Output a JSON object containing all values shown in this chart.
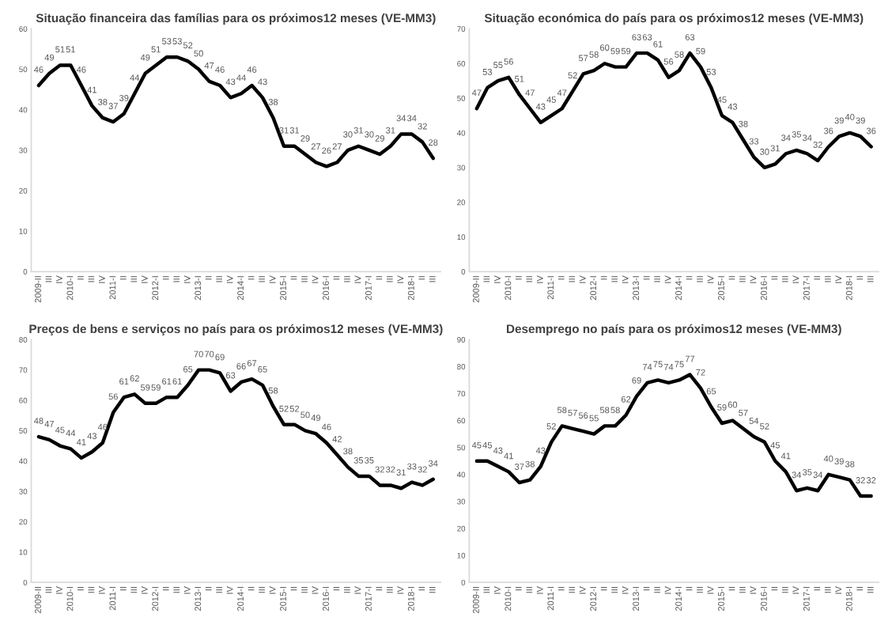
{
  "chart_data": [
    {
      "type": "line",
      "title": "Situação financeira das famílias para os próximos12 meses (VE-MM3)",
      "categories": [
        "2009-II",
        "III",
        "IV",
        "2010-I",
        "II",
        "III",
        "IV",
        "2011-I",
        "II",
        "III",
        "IV",
        "2012-I",
        "II",
        "III",
        "IV",
        "2013-I",
        "II",
        "III",
        "IV",
        "2014-I",
        "II",
        "III",
        "IV",
        "2015-I",
        "II",
        "III",
        "IV",
        "2016-I",
        "II",
        "III",
        "IV",
        "2017-I",
        "II",
        "III",
        "IV",
        "2018-I",
        "II",
        "III"
      ],
      "series": [
        {
          "color": "#000000",
          "values": [
            46,
            49,
            51,
            51,
            46,
            41,
            38,
            37,
            39,
            44,
            49,
            51,
            53,
            53,
            52,
            50,
            47,
            46,
            43,
            44,
            46,
            43,
            38,
            31,
            31,
            29,
            27,
            26,
            27,
            30,
            31,
            30,
            29,
            31,
            34,
            34,
            32,
            28
          ]
        }
      ],
      "ylim": [
        0,
        60
      ],
      "yticks": [
        0,
        10,
        20,
        30,
        40,
        50,
        60
      ],
      "data_labels": true,
      "grid": false
    },
    {
      "type": "line",
      "title": "Situação económica do país para os próximos12 meses (VE-MM3)",
      "categories": [
        "2009-II",
        "III",
        "IV",
        "2010-I",
        "II",
        "III",
        "IV",
        "2011-I",
        "II",
        "III",
        "IV",
        "2012-I",
        "II",
        "III",
        "IV",
        "2013-I",
        "II",
        "III",
        "IV",
        "2014-I",
        "II",
        "III",
        "IV",
        "2015-I",
        "II",
        "III",
        "IV",
        "2016-I",
        "II",
        "III",
        "IV",
        "2017-I",
        "II",
        "III",
        "IV",
        "2018-I",
        "II",
        "III"
      ],
      "series": [
        {
          "color": "#000000",
          "values": [
            47,
            53,
            55,
            56,
            51,
            47,
            43,
            45,
            47,
            52,
            57,
            58,
            60,
            59,
            59,
            63,
            63,
            61,
            56,
            58,
            63,
            59,
            53,
            45,
            43,
            38,
            33,
            30,
            31,
            34,
            35,
            34,
            32,
            36,
            39,
            40,
            39,
            36
          ]
        }
      ],
      "ylim": [
        0,
        70
      ],
      "yticks": [
        0,
        10,
        20,
        30,
        40,
        50,
        60,
        70
      ],
      "data_labels": true,
      "grid": false
    },
    {
      "type": "line",
      "title": "Preços de bens e serviços no país para os próximos12 meses (VE-MM3)",
      "categories": [
        "2009-II",
        "III",
        "IV",
        "2010-I",
        "II",
        "III",
        "IV",
        "2011-I",
        "II",
        "III",
        "IV",
        "2012-I",
        "II",
        "III",
        "IV",
        "2013-I",
        "II",
        "III",
        "IV",
        "2014-I",
        "II",
        "III",
        "IV",
        "2015-I",
        "II",
        "III",
        "IV",
        "2016-I",
        "II",
        "III",
        "IV",
        "2017-I",
        "II",
        "III",
        "IV",
        "2018-I",
        "II",
        "III"
      ],
      "series": [
        {
          "color": "#000000",
          "values": [
            48,
            47,
            45,
            44,
            41,
            43,
            46,
            56,
            61,
            62,
            59,
            59,
            61,
            61,
            65,
            70,
            70,
            69,
            63,
            66,
            67,
            65,
            58,
            52,
            52,
            50,
            49,
            46,
            42,
            38,
            35,
            35,
            32,
            32,
            31,
            33,
            32,
            34
          ]
        }
      ],
      "ylim": [
        0,
        80
      ],
      "yticks": [
        0,
        10,
        20,
        30,
        40,
        50,
        60,
        70,
        80
      ],
      "data_labels": true,
      "grid": false
    },
    {
      "type": "line",
      "title": "Desemprego no país para os próximos12 meses (VE-MM3)",
      "categories": [
        "2009-II",
        "III",
        "IV",
        "2010-I",
        "II",
        "III",
        "IV",
        "2011-I",
        "II",
        "III",
        "IV",
        "2012-I",
        "II",
        "III",
        "IV",
        "2013-I",
        "II",
        "III",
        "IV",
        "2014-I",
        "II",
        "III",
        "IV",
        "2015-I",
        "II",
        "III",
        "IV",
        "2016-I",
        "II",
        "III",
        "IV",
        "2017-I",
        "II",
        "III",
        "IV",
        "2018-I",
        "II",
        "III"
      ],
      "series": [
        {
          "color": "#000000",
          "values": [
            45,
            45,
            43,
            41,
            37,
            38,
            43,
            52,
            58,
            57,
            56,
            55,
            58,
            58,
            62,
            69,
            74,
            75,
            74,
            75,
            77,
            72,
            65,
            59,
            60,
            57,
            54,
            52,
            45,
            41,
            34,
            35,
            34,
            40,
            39,
            38,
            32,
            32
          ]
        }
      ],
      "ylim": [
        0,
        90
      ],
      "yticks": [
        0,
        10,
        20,
        30,
        40,
        50,
        60,
        70,
        80,
        90
      ],
      "data_labels": true,
      "grid": false
    }
  ]
}
